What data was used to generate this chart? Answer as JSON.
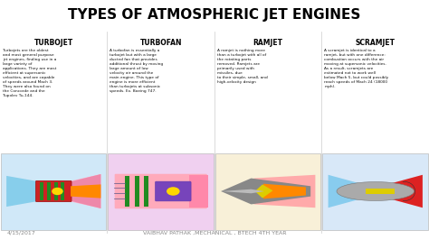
{
  "title": "TYPES OF ATMOSPHERIC JET ENGINES",
  "title_fontsize": 11,
  "title_fontweight": "bold",
  "background_color": "#ffffff",
  "columns": [
    {
      "heading": "TURBOJET",
      "text": "Turbojets are the oldest\nand most general purpose\njet engines, finding use in a\nlarge variety of\napplications. They are most\nefficient at supersonic\nvelocities, and are capable\nof speeds around Mach 3.\nThey were also found on\nthe Concorde and the\nTupolev Tu-144.",
      "diagram_bg": "#ddeeff"
    },
    {
      "heading": "TURBOFAN",
      "text": "A turbofan is essentially a\nturbojet but with a large\nducted fan that provides\nadditional thrust by moving\nlarge amount of low\nvelocity air around the\nmain engine. This type of\nengine is more efficient\nthan turbojets at subsonic\nspeeds. Ex. Boeing 747.",
      "diagram_bg": "#f8ddf8"
    },
    {
      "heading": "RAMJET",
      "text": "A ramjet is nothing more\nthan a turbojet with all of\nthe rotating parts\nremoved. Ramjets are\nprimarily used with\nmissiles, due\nto their simple, small, and\nhigh-velocity design",
      "diagram_bg": "#f8eedd"
    },
    {
      "heading": "SCRAMJET",
      "text": "A scramjet is identical to a\nramjet, but with one difference:\ncombustion occurs with the air\nmoving at supersonic velocities.\nAs a result, scramjets are\nestimated not to work well\nbelow Mach 5, but could possibly\nreach speeds of Mach 24 (18000\nmph).",
      "diagram_bg": "#ddeeff"
    }
  ],
  "footer_left": "4/15/2017",
  "footer_center": "VAIBHAV PATHAK ,MECHANICAL , BTECH 4TH YEAR",
  "footer_fontsize": 4.5,
  "col_border_color": "#cccccc",
  "heading_fontsize": 5.5,
  "text_fontsize": 3.1
}
